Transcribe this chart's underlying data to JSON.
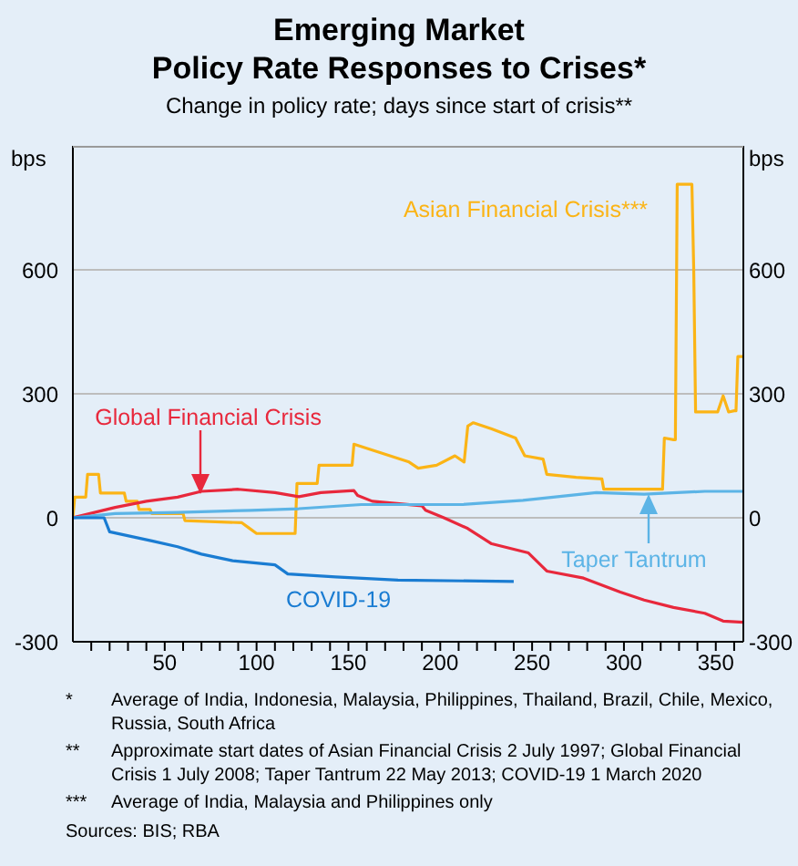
{
  "chart_data": {
    "type": "line",
    "title": "Emerging Market\nPolicy Rate Responses to Crises*",
    "subtitle": "Change in policy rate; days since start of crisis**",
    "ylabel": "bps",
    "y2label": "bps",
    "xlim": [
      0,
      365
    ],
    "xticks": [
      {
        "value": 10,
        "label": null
      },
      {
        "value": 20,
        "label": null
      },
      {
        "value": 30,
        "label": null
      },
      {
        "value": 40,
        "label": null
      },
      50,
      {
        "value": 60,
        "label": null
      },
      {
        "value": 70,
        "label": null
      },
      {
        "value": 80,
        "label": null
      },
      {
        "value": 90,
        "label": null
      },
      100,
      {
        "value": 110,
        "label": null
      },
      {
        "value": 120,
        "label": null
      },
      {
        "value": 130,
        "label": null
      },
      {
        "value": 140,
        "label": null
      },
      150,
      {
        "value": 160,
        "label": null
      },
      {
        "value": 170,
        "label": null
      },
      {
        "value": 180,
        "label": null
      },
      {
        "value": 190,
        "label": null
      },
      200,
      {
        "value": 210,
        "label": null
      },
      {
        "value": 220,
        "label": null
      },
      {
        "value": 230,
        "label": null
      },
      {
        "value": 240,
        "label": null
      },
      250,
      {
        "value": 260,
        "label": null
      },
      {
        "value": 270,
        "label": null
      },
      {
        "value": 280,
        "label": null
      },
      {
        "value": 290,
        "label": null
      },
      300,
      {
        "value": 310,
        "label": null
      },
      {
        "value": 320,
        "label": null
      },
      {
        "value": 330,
        "label": null
      },
      {
        "value": 340,
        "label": null
      },
      350,
      {
        "value": 360,
        "label": null
      }
    ],
    "ylim": [
      -300,
      900
    ],
    "yticks": [
      -300,
      0,
      300,
      600
    ],
    "y2lim": [
      -300,
      900
    ],
    "y2ticks": [
      -300,
      0,
      300,
      600
    ],
    "grid": "y",
    "marker": "none",
    "line_style": "solid",
    "series": [
      {
        "name": "Asian Financial Crisis***",
        "color": "#fbb416",
        "x": [
          0,
          1,
          7,
          8,
          14,
          15,
          28,
          29,
          35,
          36,
          42,
          43,
          60,
          61,
          92,
          96,
          100,
          121,
          122,
          133,
          134,
          152,
          153,
          183,
          188,
          198,
          208,
          213,
          215,
          218,
          228,
          241,
          246,
          256,
          258,
          274,
          288,
          289,
          321,
          322,
          327,
          328,
          329,
          337,
          338,
          339,
          351,
          354,
          357,
          360,
          361,
          362,
          365
        ],
        "values": [
          0,
          50,
          50,
          105,
          105,
          60,
          60,
          40,
          40,
          20,
          20,
          10,
          10,
          -7,
          -12,
          -25,
          -38,
          -38,
          83,
          83,
          127,
          127,
          178,
          135,
          120,
          127,
          150,
          135,
          222,
          230,
          215,
          193,
          150,
          142,
          105,
          98,
          94,
          69,
          69,
          193,
          189,
          189,
          807,
          807,
          600,
          256,
          256,
          295,
          256,
          259,
          259,
          390,
          390
        ]
      },
      {
        "name": "Global Financial Crisis",
        "color": "#e8283c",
        "x": [
          0,
          23,
          40,
          57,
          70,
          90,
          110,
          123,
          135,
          153,
          155,
          163,
          190,
          192,
          202,
          215,
          228,
          248,
          258,
          278,
          298,
          311,
          327,
          344,
          354,
          365
        ],
        "values": [
          0,
          25,
          40,
          50,
          64,
          69,
          61,
          51,
          61,
          66,
          54,
          40,
          29,
          18,
          0,
          -26,
          -63,
          -85,
          -129,
          -146,
          -180,
          -199,
          -217,
          -231,
          -250,
          -253
        ]
      },
      {
        "name": "Taper Tantrum",
        "color": "#5cb4e6",
        "x": [
          0,
          23,
          57,
          97,
          123,
          157,
          190,
          212,
          245,
          285,
          311,
          344,
          365
        ],
        "values": [
          0,
          10,
          13,
          18,
          22,
          32,
          32,
          32,
          42,
          61,
          57,
          64,
          64
        ]
      },
      {
        "name": "COVID-19",
        "color": "#1a7cd2",
        "x": [
          0,
          17,
          20,
          43,
          57,
          70,
          87,
          110,
          117,
          143,
          177,
          240
        ],
        "values": [
          0,
          0,
          -34,
          -56,
          -70,
          -88,
          -104,
          -114,
          -136,
          -143,
          -151,
          -154
        ]
      }
    ],
    "annotations": [
      "* Average of India, Indonesia, Malaysia, Philippines, Thailand, Brazil, Chile, Mexico, Russia, South Africa",
      "** Approximate start dates of Asian Financial Crisis 2 July 1997; Global Financial Crisis 1 July 2008; Taper Tantrum 22 May 2013; COVID-19 1 March 2020",
      "*** Average of India, Malaysia and Philippines only",
      "Sources: BIS; RBA"
    ]
  }
}
